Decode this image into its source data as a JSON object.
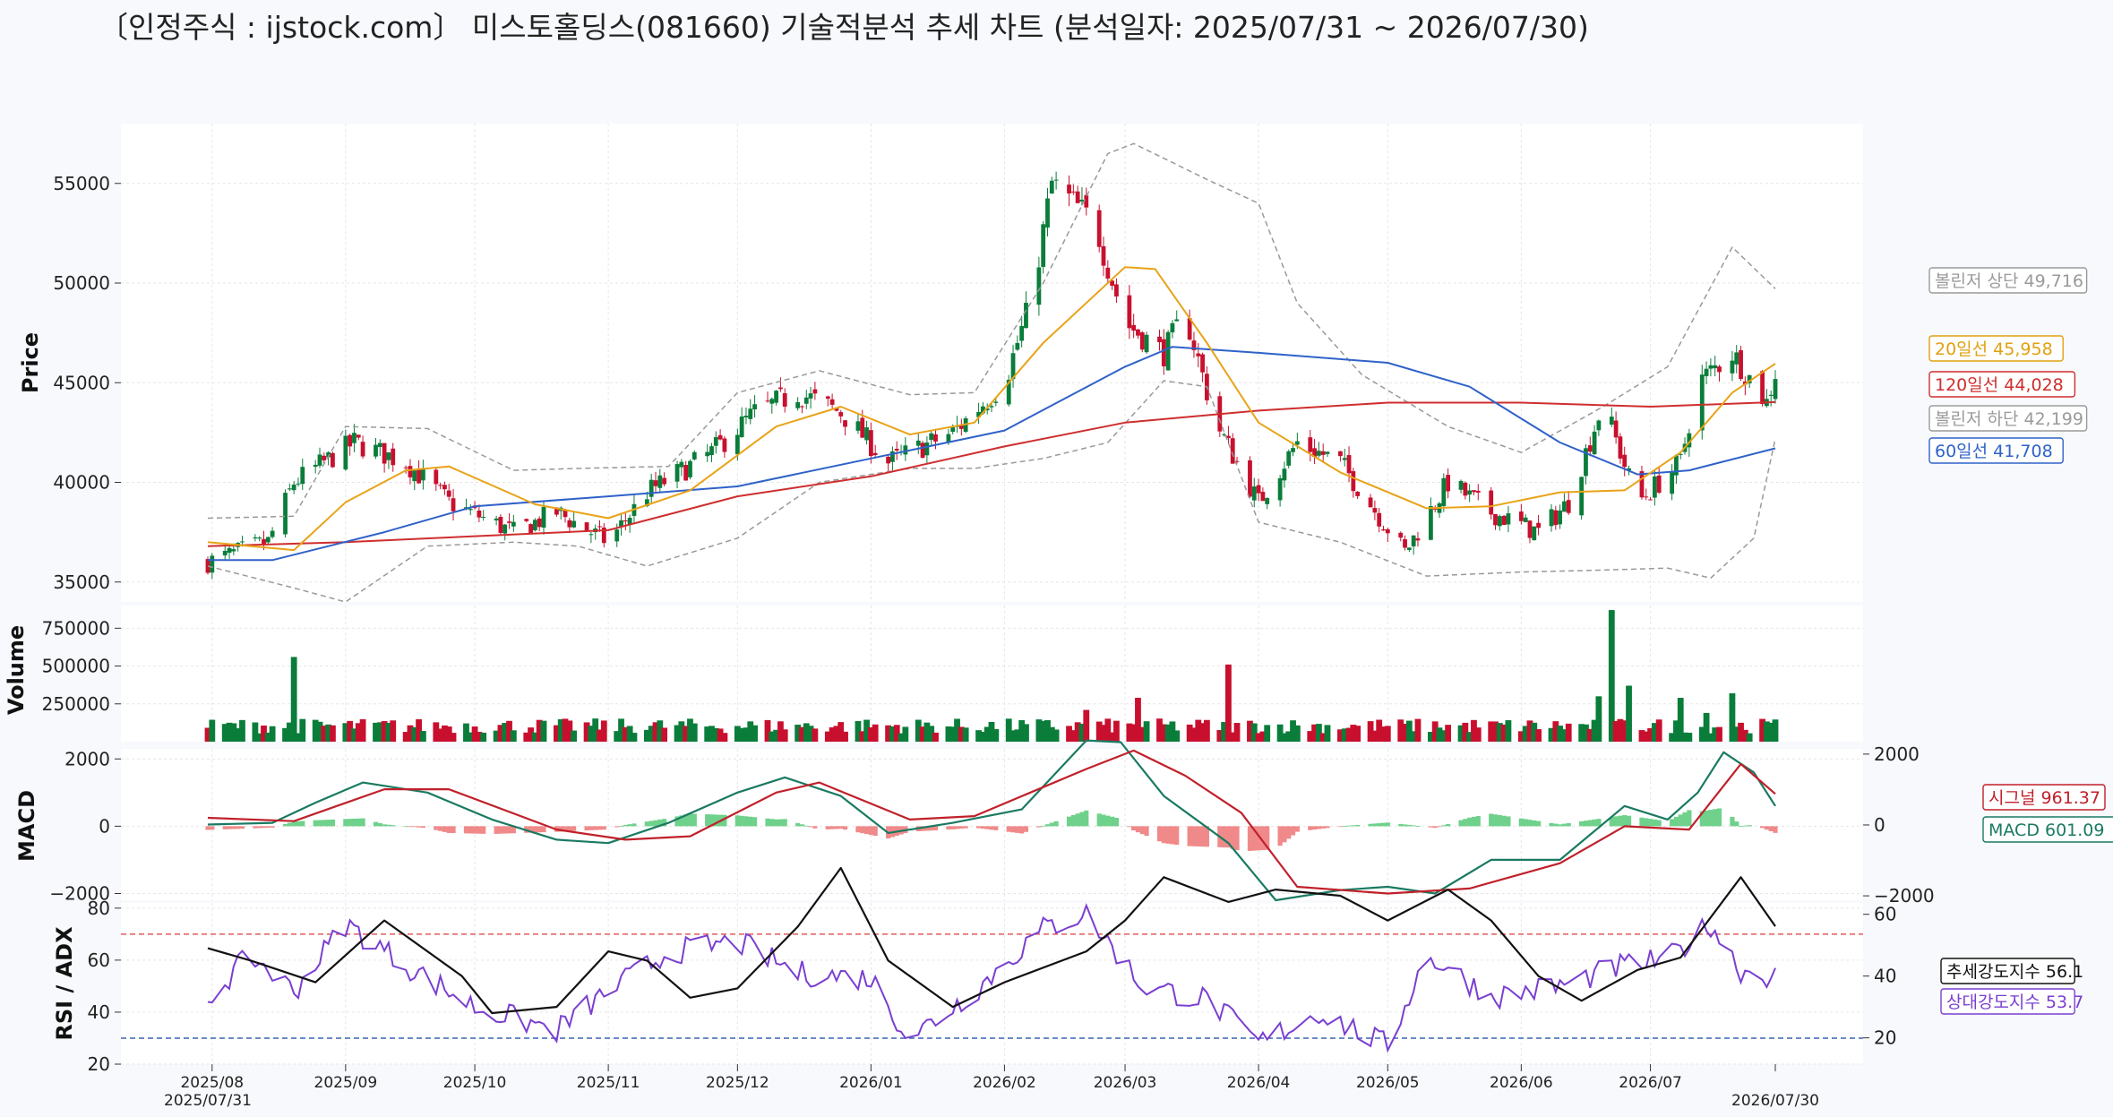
{
  "title": "〔인정주식 : ijstock.com〕 미스토홀딩스(081660) 기술적분석 추세 차트 (분석일자: 2025/07/31 ~ 2026/07/30)",
  "chart_data": [
    {
      "type": "candlestick",
      "panel": "price",
      "ylabel": "Price",
      "yticks": [
        35000,
        40000,
        45000,
        50000,
        55000
      ],
      "ylim": [
        34000,
        58000
      ],
      "x_start": "2025/07/31",
      "x_end": "2026/07/30",
      "xticks": [
        "2025/08",
        "2025/09",
        "2025/10",
        "2025/11",
        "2025/12",
        "2026/01",
        "2026/02",
        "2026/03",
        "2026/04",
        "2026/05",
        "2026/06",
        "2026/07"
      ],
      "x_end_label": "2026/07/30",
      "x_start_label": "2025/07/31",
      "close_trend": [
        [
          "2025/07/31",
          36000
        ],
        [
          "2025/08/14",
          37000
        ],
        [
          "2025/08/20",
          40000
        ],
        [
          "2025/09/03",
          42000
        ],
        [
          "2025/09/15",
          41000
        ],
        [
          "2025/09/25",
          39000
        ],
        [
          "2025/10/10",
          37500
        ],
        [
          "2025/10/20",
          38500
        ],
        [
          "2025/11/01",
          37000
        ],
        [
          "2025/11/10",
          39500
        ],
        [
          "2025/11/25",
          41500
        ],
        [
          "2025/12/05",
          43500
        ],
        [
          "2025/12/15",
          44500
        ],
        [
          "2025/12/25",
          43500
        ],
        [
          "2026/01/05",
          41000
        ],
        [
          "2026/01/20",
          42500
        ],
        [
          "2026/02/01",
          45000
        ],
        [
          "2026/02/07",
          49000
        ],
        [
          "2026/02/12",
          55000
        ],
        [
          "2026/02/22",
          53000
        ],
        [
          "2026/03/01",
          48000
        ],
        [
          "2026/03/10",
          46500
        ],
        [
          "2026/03/15",
          48500
        ],
        [
          "2026/03/22",
          43000
        ],
        [
          "2026/04/01",
          39000
        ],
        [
          "2026/04/10",
          42000
        ],
        [
          "2026/04/20",
          41000
        ],
        [
          "2026/05/05",
          36500
        ],
        [
          "2026/05/15",
          40000
        ],
        [
          "2026/05/25",
          38500
        ],
        [
          "2026/06/05",
          37500
        ],
        [
          "2026/06/12",
          39000
        ],
        [
          "2026/06/20",
          44000
        ],
        [
          "2026/06/28",
          39000
        ],
        [
          "2026/07/08",
          41000
        ],
        [
          "2026/07/12",
          45000
        ],
        [
          "2026/07/20",
          46500
        ],
        [
          "2026/07/28",
          44000
        ],
        [
          "2026/07/30",
          45500
        ]
      ],
      "ma20": [
        [
          "2025/07/31",
          37000
        ],
        [
          "2025/08/20",
          36600
        ],
        [
          "2025/09/01",
          39000
        ],
        [
          "2025/09/15",
          40600
        ],
        [
          "2025/09/25",
          40800
        ],
        [
          "2025/10/15",
          38900
        ],
        [
          "2025/11/01",
          38200
        ],
        [
          "2025/11/20",
          39600
        ],
        [
          "2025/12/10",
          42800
        ],
        [
          "2025/12/25",
          43800
        ],
        [
          "2026/01/10",
          42400
        ],
        [
          "2026/01/25",
          43000
        ],
        [
          "2026/02/10",
          47000
        ],
        [
          "2026/03/01",
          50800
        ],
        [
          "2026/03/08",
          50700
        ],
        [
          "2026/03/20",
          47000
        ],
        [
          "2026/04/01",
          43000
        ],
        [
          "2026/04/20",
          40500
        ],
        [
          "2026/05/10",
          38700
        ],
        [
          "2026/05/25",
          38800
        ],
        [
          "2026/06/10",
          39500
        ],
        [
          "2026/06/25",
          39600
        ],
        [
          "2026/07/08",
          41500
        ],
        [
          "2026/07/20",
          44500
        ],
        [
          "2026/07/30",
          45958
        ]
      ],
      "ma60": [
        [
          "2025/07/31",
          36100
        ],
        [
          "2025/08/15",
          36100
        ],
        [
          "2025/09/10",
          37500
        ],
        [
          "2025/10/01",
          38800
        ],
        [
          "2025/11/01",
          39300
        ],
        [
          "2025/12/01",
          39800
        ],
        [
          "2026/01/01",
          41200
        ],
        [
          "2026/02/01",
          42600
        ],
        [
          "2026/03/01",
          45800
        ],
        [
          "2026/03/12",
          46800
        ],
        [
          "2026/04/01",
          46500
        ],
        [
          "2026/05/01",
          46000
        ],
        [
          "2026/05/20",
          44800
        ],
        [
          "2026/06/10",
          42000
        ],
        [
          "2026/06/28",
          40400
        ],
        [
          "2026/07/10",
          40600
        ],
        [
          "2026/07/30",
          41708
        ]
      ],
      "ma120": [
        [
          "2025/07/31",
          36800
        ],
        [
          "2025/09/01",
          37000
        ],
        [
          "2025/10/01",
          37300
        ],
        [
          "2025/11/01",
          37600
        ],
        [
          "2025/12/01",
          39300
        ],
        [
          "2026/01/01",
          40300
        ],
        [
          "2026/02/01",
          41800
        ],
        [
          "2026/03/01",
          43000
        ],
        [
          "2026/04/01",
          43600
        ],
        [
          "2026/05/01",
          44000
        ],
        [
          "2026/06/01",
          44000
        ],
        [
          "2026/07/01",
          43800
        ],
        [
          "2026/07/30",
          44028
        ]
      ],
      "bb_upper": [
        [
          "2025/07/31",
          38200
        ],
        [
          "2025/08/20",
          38300
        ],
        [
          "2025/09/01",
          42800
        ],
        [
          "2025/09/20",
          42700
        ],
        [
          "2025/10/10",
          40600
        ],
        [
          "2025/10/25",
          40700
        ],
        [
          "2025/11/15",
          40800
        ],
        [
          "2025/12/01",
          44500
        ],
        [
          "2025/12/20",
          45600
        ],
        [
          "2026/01/10",
          44400
        ],
        [
          "2026/01/25",
          44500
        ],
        [
          "2026/02/10",
          50000
        ],
        [
          "2026/02/25",
          56500
        ],
        [
          "2026/03/03",
          57000
        ],
        [
          "2026/03/20",
          55200
        ],
        [
          "2026/04/01",
          54000
        ],
        [
          "2026/04/10",
          49000
        ],
        [
          "2026/04/25",
          45400
        ],
        [
          "2026/05/15",
          42800
        ],
        [
          "2026/06/01",
          41500
        ],
        [
          "2026/06/20",
          43800
        ],
        [
          "2026/07/05",
          45800
        ],
        [
          "2026/07/20",
          51800
        ],
        [
          "2026/07/30",
          49716
        ]
      ],
      "bb_lower": [
        [
          "2025/07/31",
          35800
        ],
        [
          "2025/08/20",
          34700
        ],
        [
          "2025/09/01",
          34000
        ],
        [
          "2025/09/20",
          36800
        ],
        [
          "2025/10/10",
          37000
        ],
        [
          "2025/10/25",
          36800
        ],
        [
          "2025/11/10",
          35800
        ],
        [
          "2025/12/01",
          37200
        ],
        [
          "2025/12/20",
          40000
        ],
        [
          "2026/01/10",
          40700
        ],
        [
          "2026/01/25",
          40700
        ],
        [
          "2026/02/10",
          41200
        ],
        [
          "2026/02/25",
          42000
        ],
        [
          "2026/03/10",
          45100
        ],
        [
          "2026/03/20",
          44800
        ],
        [
          "2026/04/01",
          38000
        ],
        [
          "2026/04/20",
          37000
        ],
        [
          "2026/05/10",
          35300
        ],
        [
          "2026/06/01",
          35500
        ],
        [
          "2026/06/20",
          35600
        ],
        [
          "2026/07/05",
          35700
        ],
        [
          "2026/07/15",
          35200
        ],
        [
          "2026/07/25",
          37200
        ],
        [
          "2026/07/30",
          42199
        ]
      ],
      "last_values": {
        "bb_upper": "볼린저 상단 49,716",
        "ma20": "20일선 45,958",
        "ma120": "120일선 44,028",
        "bb_lower": "볼린저 하단 42,199",
        "ma60": "60일선 41,708"
      },
      "colors": {
        "up": "#0a7d3a",
        "down": "#c8102e",
        "ma20": "#e8a317",
        "ma60": "#2f62c9",
        "ma120": "#cf2e2e",
        "bb": "#999999"
      }
    },
    {
      "type": "bar",
      "panel": "volume",
      "ylabel": "Volume",
      "yticks": [
        250000,
        500000,
        750000
      ],
      "ylim": [
        0,
        900000
      ],
      "avg_volume": 110000,
      "spikes": [
        [
          "2025/08/20",
          560000
        ],
        [
          "2025/09/28",
          210000
        ],
        [
          "2026/02/20",
          210000
        ],
        [
          "2026/03/04",
          290000
        ],
        [
          "2026/03/25",
          510000
        ],
        [
          "2026/06/22",
          870000
        ],
        [
          "2026/06/26",
          370000
        ],
        [
          "2026/06/19",
          300000
        ],
        [
          "2026/07/08",
          290000
        ],
        [
          "2026/07/20",
          320000
        ],
        [
          "2026/07/14",
          190000
        ]
      ]
    },
    {
      "type": "line",
      "panel": "macd",
      "ylabel": "MACD",
      "yticks": [
        -2000,
        0,
        2000
      ],
      "right_yticks": [
        -2000,
        0,
        2000
      ],
      "ylim": [
        -2200,
        2300
      ],
      "macd": [
        [
          "2025/07/31",
          50
        ],
        [
          "2025/08/15",
          100
        ],
        [
          "2025/08/25",
          700
        ],
        [
          "2025/09/05",
          1300
        ],
        [
          "2025/09/20",
          1000
        ],
        [
          "2025/10/05",
          200
        ],
        [
          "2025/10/20",
          -400
        ],
        [
          "2025/11/01",
          -500
        ],
        [
          "2025/11/15",
          100
        ],
        [
          "2025/12/01",
          1000
        ],
        [
          "2025/12/12",
          1450
        ],
        [
          "2025/12/25",
          900
        ],
        [
          "2026/01/05",
          -200
        ],
        [
          "2026/01/20",
          100
        ],
        [
          "2026/02/05",
          500
        ],
        [
          "2026/02/20",
          2550
        ],
        [
          "2026/02/28",
          2500
        ],
        [
          "2026/03/10",
          900
        ],
        [
          "2026/03/25",
          -500
        ],
        [
          "2026/04/05",
          -2200
        ],
        [
          "2026/04/20",
          -1900
        ],
        [
          "2026/05/01",
          -1800
        ],
        [
          "2026/05/12",
          -2000
        ],
        [
          "2026/05/25",
          -1000
        ],
        [
          "2026/06/10",
          -1000
        ],
        [
          "2026/06/25",
          600
        ],
        [
          "2026/07/05",
          200
        ],
        [
          "2026/07/12",
          1000
        ],
        [
          "2026/07/18",
          2200
        ],
        [
          "2026/07/25",
          1600
        ],
        [
          "2026/07/30",
          601.09
        ]
      ],
      "signal": [
        [
          "2025/07/31",
          250
        ],
        [
          "2025/08/20",
          150
        ],
        [
          "2025/09/10",
          1100
        ],
        [
          "2025/09/25",
          1100
        ],
        [
          "2025/10/20",
          -100
        ],
        [
          "2025/11/05",
          -400
        ],
        [
          "2025/11/20",
          -300
        ],
        [
          "2025/12/10",
          1000
        ],
        [
          "2025/12/20",
          1300
        ],
        [
          "2026/01/10",
          200
        ],
        [
          "2026/01/25",
          300
        ],
        [
          "2026/02/20",
          1700
        ],
        [
          "2026/03/03",
          2250
        ],
        [
          "2026/03/15",
          1500
        ],
        [
          "2026/03/28",
          400
        ],
        [
          "2026/04/10",
          -1800
        ],
        [
          "2026/05/01",
          -2000
        ],
        [
          "2026/05/20",
          -1850
        ],
        [
          "2026/06/10",
          -1100
        ],
        [
          "2026/06/25",
          0
        ],
        [
          "2026/07/10",
          -100
        ],
        [
          "2026/07/22",
          1850
        ],
        [
          "2026/07/30",
          961.37
        ]
      ],
      "last_values": {
        "signal": "시그널 961.37",
        "macd": "MACD 601.09"
      },
      "colors": {
        "macd": "#1a7a62",
        "signal": "#c0202a",
        "hist_pos": "#6fd18b",
        "hist_neg": "#f08a8a"
      }
    },
    {
      "type": "line",
      "panel": "rsi_adx",
      "ylabel": "RSI / ADX",
      "yticks": [
        20,
        40,
        60,
        80
      ],
      "right_yticks": [
        20,
        40,
        60
      ],
      "ylim": [
        20,
        82
      ],
      "overbought": 70,
      "oversold": 30,
      "adx": [
        [
          "2025/07/31",
          49
        ],
        [
          "2025/08/10",
          45
        ],
        [
          "2025/08/25",
          38
        ],
        [
          "2025/09/10",
          58
        ],
        [
          "2025/09/28",
          40
        ],
        [
          "2025/10/05",
          28
        ],
        [
          "2025/10/20",
          30
        ],
        [
          "2025/11/01",
          48
        ],
        [
          "2025/11/10",
          45
        ],
        [
          "2025/11/20",
          33
        ],
        [
          "2025/12/01",
          36
        ],
        [
          "2025/12/15",
          56
        ],
        [
          "2025/12/25",
          75
        ],
        [
          "2026/01/05",
          45
        ],
        [
          "2026/01/20",
          30
        ],
        [
          "2026/02/01",
          38
        ],
        [
          "2026/02/20",
          48
        ],
        [
          "2026/03/01",
          58
        ],
        [
          "2026/03/10",
          72
        ],
        [
          "2026/03/25",
          64
        ],
        [
          "2026/04/05",
          68
        ],
        [
          "2026/04/20",
          66
        ],
        [
          "2026/05/01",
          58
        ],
        [
          "2026/05/15",
          68
        ],
        [
          "2026/05/25",
          58
        ],
        [
          "2026/06/05",
          40
        ],
        [
          "2026/06/15",
          32
        ],
        [
          "2026/06/28",
          42
        ],
        [
          "2026/07/08",
          46
        ],
        [
          "2026/07/22",
          72
        ],
        [
          "2026/07/30",
          56.1
        ]
      ],
      "rsi": [
        [
          "2025/07/31",
          45
        ],
        [
          "2025/08/10",
          62
        ],
        [
          "2025/08/20",
          48
        ],
        [
          "2025/09/01",
          74
        ],
        [
          "2025/09/15",
          58
        ],
        [
          "2025/10/01",
          42
        ],
        [
          "2025/10/20",
          33
        ],
        [
          "2025/11/01",
          48
        ],
        [
          "2025/11/15",
          63
        ],
        [
          "2025/12/01",
          67
        ],
        [
          "2025/12/15",
          55
        ],
        [
          "2026/01/01",
          53
        ],
        [
          "2026/01/10",
          30
        ],
        [
          "2026/01/25",
          48
        ],
        [
          "2026/02/10",
          72
        ],
        [
          "2026/02/20",
          78
        ],
        [
          "2026/03/05",
          50
        ],
        [
          "2026/03/20",
          45
        ],
        [
          "2026/04/01",
          28
        ],
        [
          "2026/04/15",
          40
        ],
        [
          "2026/05/01",
          27
        ],
        [
          "2026/05/10",
          62
        ],
        [
          "2026/05/25",
          46
        ],
        [
          "2026/06/10",
          50
        ],
        [
          "2026/06/25",
          58
        ],
        [
          "2026/07/05",
          60
        ],
        [
          "2026/07/15",
          74
        ],
        [
          "2026/07/22",
          56
        ],
        [
          "2026/07/30",
          53.7
        ]
      ],
      "last_values": {
        "adx": "추세강도지수 56.1",
        "rsi": "상대강도지수 53.7"
      },
      "colors": {
        "adx": "#111111",
        "rsi": "#7a3fd0",
        "overbought": "#e05a5a",
        "oversold": "#3a64b4"
      }
    }
  ]
}
